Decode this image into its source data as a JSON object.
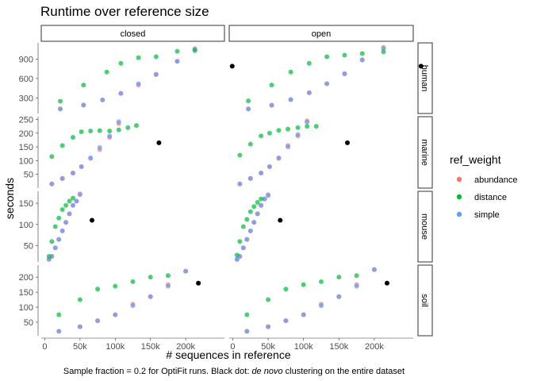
{
  "chart_data": {
    "type": "scatter",
    "title": "Runtime over reference size",
    "xlabel": "# sequences in reference",
    "ylabel": "seconds",
    "caption_parts": [
      {
        "text": "Sample fraction = 0.2 for OptiFit runs. Black dot: ",
        "italic": false
      },
      {
        "text": "de novo",
        "italic": true
      },
      {
        "text": " clustering on the entire dataset",
        "italic": false
      }
    ],
    "legend": {
      "title": "ref_weight",
      "placement": "right",
      "entries": [
        {
          "name": "abundance",
          "color": "#F8766D"
        },
        {
          "name": "distance",
          "color": "#00BA38"
        },
        {
          "name": "simple",
          "color": "#619CFF"
        }
      ]
    },
    "denovo_color": "#000000",
    "grid": false,
    "xlim": [
      -5000,
      255000
    ],
    "x_ticks": [
      0,
      50000,
      100000,
      150000,
      200000
    ],
    "x_tick_labels": [
      "0",
      "50k",
      "100k",
      "150k",
      "200k"
    ],
    "columns": [
      "closed",
      "open"
    ],
    "rows": [
      {
        "name": "human",
        "ylim": [
          60,
          1150
        ],
        "y_ticks": [
          300,
          600,
          900
        ],
        "y_tick_labels": [
          "300",
          "600",
          "900"
        ],
        "denovo": {
          "closed": [
            266000,
            790
          ],
          "open": [
            266000,
            790
          ]
        },
        "series": {
          "closed": {
            "distance": [
              [
                22000,
                250
              ],
              [
                55000,
                500
              ],
              [
                88000,
                700
              ],
              [
                108000,
                835
              ],
              [
                133000,
                920
              ],
              [
                158000,
                935
              ],
              [
                188000,
                1020
              ],
              [
                213000,
                1030
              ]
            ],
            "simple": [
              [
                22000,
                130
              ],
              [
                55000,
                190
              ],
              [
                82000,
                270
              ],
              [
                108000,
                370
              ],
              [
                133000,
                520
              ],
              [
                158000,
                665
              ],
              [
                188000,
                865
              ],
              [
                213000,
                1050
              ]
            ],
            "abundance": [
              [
                22000,
                130
              ],
              [
                55000,
                190
              ],
              [
                82000,
                270
              ],
              [
                108000,
                370
              ],
              [
                133000,
                500
              ],
              [
                158000,
                660
              ],
              [
                188000,
                865
              ],
              [
                213000,
                1060
              ]
            ]
          },
          "open": {
            "distance": [
              [
                22000,
                255
              ],
              [
                55000,
                500
              ],
              [
                82000,
                700
              ],
              [
                108000,
                835
              ],
              [
                133000,
                935
              ],
              [
                158000,
                960
              ],
              [
                183000,
                985
              ],
              [
                213000,
                1010
              ]
            ],
            "simple": [
              [
                22000,
                130
              ],
              [
                55000,
                185
              ],
              [
                82000,
                275
              ],
              [
                108000,
                380
              ],
              [
                133000,
                520
              ],
              [
                158000,
                675
              ],
              [
                183000,
                885
              ],
              [
                213000,
                1060
              ]
            ],
            "abundance": [
              [
                22000,
                130
              ],
              [
                55000,
                190
              ],
              [
                82000,
                275
              ],
              [
                108000,
                380
              ],
              [
                133000,
                520
              ],
              [
                158000,
                670
              ],
              [
                183000,
                890
              ],
              [
                213000,
                1080
              ]
            ]
          }
        }
      },
      {
        "name": "marine",
        "ylim": [
          0,
          260
        ],
        "y_ticks": [
          50,
          100,
          150,
          200,
          250
        ],
        "y_tick_labels": [
          "50",
          "100",
          "150",
          "200",
          "250"
        ],
        "denovo": {
          "closed": [
            162000,
            165
          ],
          "open": [
            162000,
            165
          ]
        },
        "series": {
          "closed": {
            "distance": [
              [
                10000,
                115
              ],
              [
                25000,
                155
              ],
              [
                40000,
                185
              ],
              [
                52000,
                205
              ],
              [
                65000,
                208
              ],
              [
                78000,
                209
              ],
              [
                92000,
                208
              ],
              [
                105000,
                212
              ],
              [
                118000,
                220
              ],
              [
                130000,
                228
              ]
            ],
            "simple": [
              [
                10000,
                15
              ],
              [
                25000,
                35
              ],
              [
                40000,
                55
              ],
              [
                52000,
                78
              ],
              [
                65000,
                110
              ],
              [
                78000,
                148
              ],
              [
                92000,
                190
              ],
              [
                105000,
                242
              ]
            ],
            "abundance": [
              [
                10000,
                15
              ],
              [
                25000,
                35
              ],
              [
                40000,
                55
              ],
              [
                52000,
                78
              ],
              [
                65000,
                108
              ],
              [
                78000,
                140
              ],
              [
                92000,
                185
              ],
              [
                105000,
                235
              ]
            ]
          },
          "open": {
            "distance": [
              [
                10000,
                120
              ],
              [
                25000,
                160
              ],
              [
                40000,
                190
              ],
              [
                52000,
                200
              ],
              [
                65000,
                210
              ],
              [
                78000,
                215
              ],
              [
                92000,
                220
              ],
              [
                105000,
                225
              ],
              [
                118000,
                225
              ]
            ],
            "simple": [
              [
                10000,
                15
              ],
              [
                25000,
                35
              ],
              [
                40000,
                55
              ],
              [
                52000,
                78
              ],
              [
                65000,
                110
              ],
              [
                78000,
                150
              ],
              [
                92000,
                195
              ],
              [
                105000,
                240
              ]
            ],
            "abundance": [
              [
                10000,
                15
              ],
              [
                25000,
                35
              ],
              [
                40000,
                55
              ],
              [
                52000,
                78
              ],
              [
                65000,
                108
              ],
              [
                78000,
                155
              ],
              [
                92000,
                190
              ],
              [
                105000,
                245
              ]
            ]
          }
        }
      },
      {
        "name": "mouse",
        "ylim": [
          12,
          178
        ],
        "y_ticks": [
          50,
          100,
          150
        ],
        "y_tick_labels": [
          "50",
          "100",
          "150"
        ],
        "denovo": {
          "closed": [
            67000,
            110
          ],
          "open": [
            67000,
            110
          ]
        },
        "series": {
          "closed": {
            "distance": [
              [
                6000,
                25
              ],
              [
                10000,
                60
              ],
              [
                15000,
                95
              ],
              [
                20000,
                115
              ],
              [
                25000,
                135
              ],
              [
                30000,
                145
              ],
              [
                35000,
                155
              ],
              [
                40000,
                162
              ]
            ],
            "simple": [
              [
                6000,
                18
              ],
              [
                10000,
                25
              ],
              [
                15000,
                45
              ],
              [
                20000,
                65
              ],
              [
                25000,
                85
              ],
              [
                30000,
                105
              ],
              [
                35000,
                125
              ],
              [
                40000,
                145
              ],
              [
                45000,
                155
              ],
              [
                50000,
                170
              ]
            ],
            "abundance": [
              [
                6000,
                18
              ],
              [
                10000,
                25
              ],
              [
                15000,
                45
              ],
              [
                20000,
                65
              ],
              [
                25000,
                85
              ],
              [
                30000,
                105
              ],
              [
                35000,
                125
              ],
              [
                40000,
                145
              ],
              [
                45000,
                155
              ],
              [
                50000,
                172
              ]
            ]
          },
          "open": {
            "distance": [
              [
                6000,
                28
              ],
              [
                10000,
                60
              ],
              [
                15000,
                95
              ],
              [
                20000,
                112
              ],
              [
                25000,
                130
              ],
              [
                30000,
                142
              ],
              [
                35000,
                152
              ],
              [
                40000,
                160
              ]
            ],
            "simple": [
              [
                6000,
                18
              ],
              [
                10000,
                25
              ],
              [
                15000,
                45
              ],
              [
                20000,
                65
              ],
              [
                25000,
                85
              ],
              [
                30000,
                105
              ],
              [
                35000,
                125
              ],
              [
                40000,
                145
              ],
              [
                45000,
                160
              ],
              [
                50000,
                168
              ]
            ],
            "abundance": [
              [
                6000,
                18
              ],
              [
                10000,
                25
              ],
              [
                15000,
                45
              ],
              [
                20000,
                65
              ],
              [
                25000,
                85
              ],
              [
                30000,
                105
              ],
              [
                35000,
                125
              ],
              [
                40000,
                145
              ],
              [
                45000,
                160
              ],
              [
                50000,
                170
              ]
            ]
          }
        }
      },
      {
        "name": "soil",
        "ylim": [
          5,
          240
        ],
        "y_ticks": [
          50,
          100,
          150,
          200
        ],
        "y_tick_labels": [
          "50",
          "100",
          "150",
          "200"
        ],
        "denovo": {
          "closed": [
            218000,
            180
          ],
          "open": [
            218000,
            180
          ]
        },
        "series": {
          "closed": {
            "distance": [
              [
                20000,
                75
              ],
              [
                50000,
                125
              ],
              [
                75000,
                160
              ],
              [
                100000,
                170
              ],
              [
                125000,
                185
              ],
              [
                150000,
                200
              ],
              [
                175000,
                205
              ]
            ],
            "simple": [
              [
                20000,
                20
              ],
              [
                50000,
                35
              ],
              [
                75000,
                55
              ],
              [
                100000,
                75
              ],
              [
                125000,
                105
              ],
              [
                150000,
                135
              ],
              [
                175000,
                170
              ],
              [
                200000,
                220
              ]
            ],
            "abundance": [
              [
                20000,
                20
              ],
              [
                50000,
                35
              ],
              [
                75000,
                55
              ],
              [
                100000,
                75
              ],
              [
                125000,
                110
              ],
              [
                150000,
                135
              ],
              [
                175000,
                175
              ],
              [
                200000,
                220
              ]
            ]
          },
          "open": {
            "distance": [
              [
                20000,
                75
              ],
              [
                50000,
                125
              ],
              [
                75000,
                160
              ],
              [
                100000,
                175
              ],
              [
                125000,
                185
              ],
              [
                150000,
                200
              ],
              [
                175000,
                205
              ]
            ],
            "simple": [
              [
                20000,
                20
              ],
              [
                50000,
                35
              ],
              [
                75000,
                55
              ],
              [
                100000,
                75
              ],
              [
                125000,
                105
              ],
              [
                150000,
                135
              ],
              [
                175000,
                170
              ],
              [
                200000,
                225
              ]
            ],
            "abundance": [
              [
                20000,
                20
              ],
              [
                50000,
                35
              ],
              [
                75000,
                55
              ],
              [
                100000,
                75
              ],
              [
                125000,
                110
              ],
              [
                150000,
                135
              ],
              [
                175000,
                175
              ],
              [
                200000,
                225
              ]
            ]
          }
        }
      }
    ]
  }
}
